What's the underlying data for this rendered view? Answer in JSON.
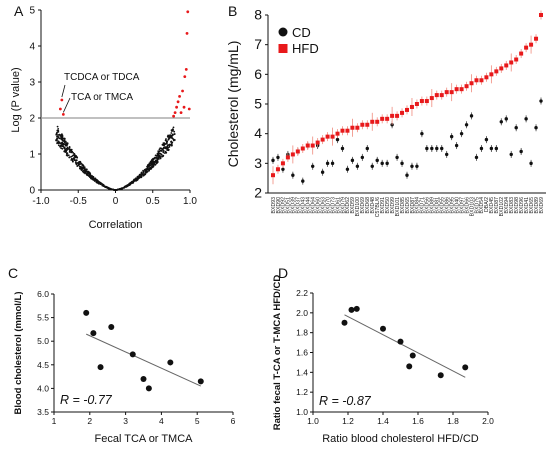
{
  "chart_data": [
    {
      "panel": "A",
      "type": "scatter",
      "xlabel": "Correlation",
      "ylabel": "Log (P value)",
      "xlim": [
        -1.0,
        1.0
      ],
      "ylim": [
        0,
        5
      ],
      "xticks": [
        "-1.0",
        "-0.5",
        "0",
        "0.5",
        "1.0"
      ],
      "yticks": [
        "0",
        "1",
        "2",
        "3",
        "4",
        "5"
      ],
      "threshold_y": 2,
      "colors": {
        "sig": "#e8191b",
        "nonsig": "#111111",
        "line": "#9a9a9a"
      },
      "annotations": [
        "TCDCA or TDCA",
        "TCA or TMCA"
      ],
      "sig_points": [
        {
          "x": -0.74,
          "y": 2.25
        },
        {
          "x": -0.72,
          "y": 2.5
        },
        {
          "x": -0.7,
          "y": 2.1
        },
        {
          "x": 0.78,
          "y": 2.05
        },
        {
          "x": 0.8,
          "y": 2.15
        },
        {
          "x": 0.82,
          "y": 2.3
        },
        {
          "x": 0.84,
          "y": 2.45
        },
        {
          "x": 0.86,
          "y": 2.6
        },
        {
          "x": 0.88,
          "y": 2.15
        },
        {
          "x": 0.9,
          "y": 2.75
        },
        {
          "x": 0.92,
          "y": 2.3
        },
        {
          "x": 0.93,
          "y": 3.15
        },
        {
          "x": 0.95,
          "y": 3.35
        },
        {
          "x": 0.96,
          "y": 4.35
        },
        {
          "x": 0.97,
          "y": 4.95
        },
        {
          "x": 0.99,
          "y": 2.25
        }
      ]
    },
    {
      "panel": "B",
      "type": "scatter",
      "ylabel": "Cholesterol (mg/mL)",
      "ylim": [
        2,
        8
      ],
      "yticks": [
        "2",
        "3",
        "4",
        "5",
        "6",
        "7",
        "8"
      ],
      "legend": "top-left",
      "series": [
        {
          "name": "CD",
          "color": "#111111",
          "marker": "circle",
          "values": [
            3.1,
            3.2,
            2.8,
            3.3,
            2.6,
            3.4,
            2.4,
            3.6,
            2.9,
            3.6,
            2.7,
            3.0,
            3.0,
            3.8,
            3.5,
            2.8,
            3.1,
            2.9,
            3.2,
            3.5,
            2.9,
            3.1,
            3.0,
            3.0,
            4.3,
            3.2,
            3.0,
            2.6,
            2.9,
            2.9,
            4.0,
            3.5,
            3.5,
            3.5,
            3.5,
            3.3,
            3.9,
            3.6,
            4.0,
            4.3,
            4.6,
            3.2,
            3.5,
            3.8,
            3.5,
            3.5,
            4.4,
            4.5,
            3.3,
            4.2,
            3.4,
            4.5,
            3.0,
            4.2,
            5.1
          ]
        },
        {
          "name": "HFD",
          "color": "#e8191b",
          "marker": "square",
          "values": [
            2.6,
            2.8,
            3.0,
            3.2,
            3.3,
            3.4,
            3.5,
            3.6,
            3.6,
            3.7,
            3.8,
            3.9,
            3.9,
            4.0,
            4.1,
            4.1,
            4.2,
            4.2,
            4.3,
            4.3,
            4.4,
            4.4,
            4.5,
            4.5,
            4.6,
            4.6,
            4.7,
            4.8,
            4.9,
            5.0,
            5.1,
            5.1,
            5.2,
            5.3,
            5.3,
            5.4,
            5.4,
            5.5,
            5.5,
            5.6,
            5.7,
            5.8,
            5.8,
            5.9,
            6.0,
            6.1,
            6.2,
            6.3,
            6.4,
            6.5,
            6.7,
            6.9,
            7.0,
            7.2,
            8.0
          ]
        }
      ],
      "categories": [
        "BXD93",
        "BXD90",
        "BXD92",
        "BXD51",
        "BXD39",
        "BXD37",
        "BXD43",
        "BXD44",
        "BXD64",
        "BXD60",
        "BXD63",
        "BXD70",
        "BXD73",
        "BXD61",
        "BXD79",
        "BXD62",
        "BXD59",
        "BXD100",
        "BXD69",
        "BXD68",
        "BXD48",
        "C57BL/6",
        "BXD91",
        "BXD50",
        "BXD99",
        "BXD101",
        "BXD85",
        "BXD65",
        "BXD87",
        "BXD84",
        "BXD71",
        "BXD56",
        "BXD89",
        "BXD81",
        "BXD55",
        "BXD86",
        "BXD95",
        "BXD40",
        "BXD97",
        "BXD66",
        "BXD103",
        "BXD75",
        "BXD54",
        "DBA/2",
        "BXD45",
        "BXD87",
        "BXD102",
        "BXD94",
        "BXD83",
        "BXD98",
        "BXD96",
        "BXD41",
        "BXD65",
        "BXD89",
        "BXD69"
      ]
    },
    {
      "panel": "C",
      "type": "scatter",
      "xlabel": "Fecal TCA or TMCA",
      "ylabel": "Blood cholesterol (mmol/L)",
      "xlim": [
        1,
        6
      ],
      "ylim": [
        3.5,
        6.0
      ],
      "xticks": [
        "1",
        "2",
        "3",
        "4",
        "5",
        "6"
      ],
      "yticks": [
        "3.5",
        "4.0",
        "4.5",
        "5.0",
        "5.5",
        "6.0"
      ],
      "r_label": "R = -0.77",
      "points": [
        {
          "x": 1.9,
          "y": 5.6
        },
        {
          "x": 2.1,
          "y": 5.17
        },
        {
          "x": 2.3,
          "y": 4.45
        },
        {
          "x": 2.6,
          "y": 5.3
        },
        {
          "x": 3.2,
          "y": 4.72
        },
        {
          "x": 3.5,
          "y": 4.2
        },
        {
          "x": 3.65,
          "y": 4.0
        },
        {
          "x": 4.25,
          "y": 4.55
        },
        {
          "x": 5.1,
          "y": 4.15
        }
      ],
      "fit": {
        "x": [
          1.9,
          5.1
        ],
        "y": [
          5.15,
          4.05
        ]
      }
    },
    {
      "panel": "D",
      "type": "scatter",
      "xlabel": "Ratio blood cholesterol HFD/CD",
      "ylabel": "Ratio fecal T-CA or T-MCA HFD/CD",
      "xlim": [
        1.0,
        2.0
      ],
      "ylim": [
        1.0,
        2.2
      ],
      "xticks": [
        "1.0",
        "1.2",
        "1.4",
        "1.6",
        "1.8",
        "2.0"
      ],
      "yticks": [
        "1.0",
        "1.2",
        "1.4",
        "1.6",
        "1.8",
        "2.0",
        "2.2"
      ],
      "r_label": "R = -0.87",
      "points": [
        {
          "x": 1.18,
          "y": 1.9
        },
        {
          "x": 1.22,
          "y": 2.03
        },
        {
          "x": 1.25,
          "y": 2.04
        },
        {
          "x": 1.4,
          "y": 1.84
        },
        {
          "x": 1.5,
          "y": 1.71
        },
        {
          "x": 1.55,
          "y": 1.46
        },
        {
          "x": 1.57,
          "y": 1.57
        },
        {
          "x": 1.73,
          "y": 1.37
        },
        {
          "x": 1.87,
          "y": 1.45
        }
      ],
      "fit": {
        "x": [
          1.18,
          1.87
        ],
        "y": [
          1.98,
          1.35
        ]
      }
    }
  ]
}
